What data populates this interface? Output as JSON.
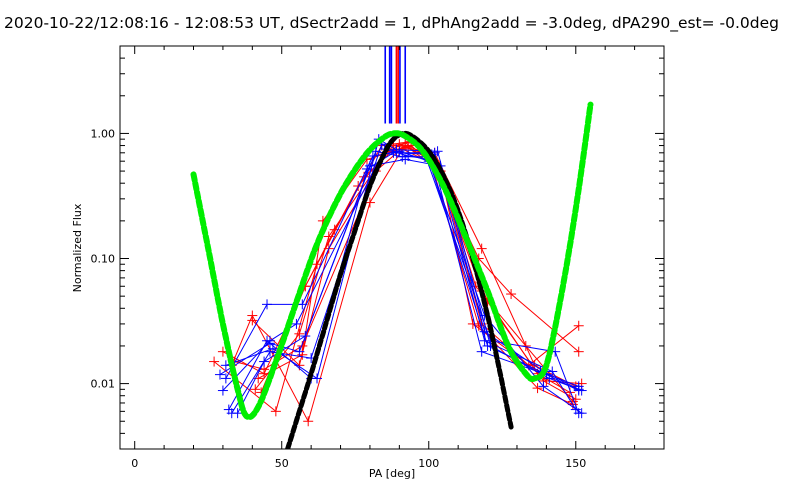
{
  "chart_data": {
    "type": "line",
    "title": "2020-10-22/12:08:16 - 12:08:53 UT, dSectr2add = 1, dPhAng2add = -3.0deg, dPA290_est= -0.0deg",
    "xlabel": "PA [deg]",
    "ylabel": "Normalized Flux",
    "xlim": [
      -5,
      180
    ],
    "ylim": [
      0.003,
      5
    ],
    "yscale": "log",
    "x_ticks": [
      0,
      50,
      100,
      150
    ],
    "x_tick_labels": [
      "0",
      "50",
      "100",
      "150"
    ],
    "y_ticks": [
      0.01,
      0.1,
      1.0
    ],
    "y_tick_labels": [
      "0.01",
      "0.10",
      "1.00"
    ],
    "grid": false,
    "vertical_markers": [
      {
        "x": 85.2,
        "color": "#0000ff"
      },
      {
        "x": 86.7,
        "color": "#0000ff"
      },
      {
        "x": 87.3,
        "color": "#0000ff"
      },
      {
        "x": 89.0,
        "color": "#ff0000"
      },
      {
        "x": 89.6,
        "color": "#ff0000"
      },
      {
        "x": 90.2,
        "color": "#0000ff"
      },
      {
        "x": 92.0,
        "color": "#0000ff"
      }
    ],
    "vertical_marker_range": [
      1.2,
      5
    ],
    "green_fit": {
      "name": "green fit",
      "color": "#00ee00",
      "x": [
        20,
        25,
        30,
        35,
        38,
        42,
        48,
        55,
        62,
        70,
        78,
        84,
        88,
        92,
        98,
        105,
        112,
        120,
        127,
        133,
        136,
        140,
        145,
        150,
        155
      ],
      "y": [
        0.47,
        0.12,
        0.03,
        0.009,
        0.0055,
        0.0065,
        0.015,
        0.045,
        0.13,
        0.33,
        0.65,
        0.9,
        1.0,
        0.95,
        0.72,
        0.38,
        0.16,
        0.055,
        0.02,
        0.012,
        0.011,
        0.014,
        0.05,
        0.25,
        1.7
      ]
    },
    "black_fit": {
      "name": "black fit",
      "color": "#000000",
      "peak_x": 91.5,
      "peak_y": 1.0,
      "x": [
        52,
        56,
        60,
        65,
        70,
        75,
        80,
        85,
        88,
        91.5,
        95,
        100,
        105,
        110,
        115,
        120,
        124,
        128
      ],
      "y": [
        0.003,
        0.006,
        0.012,
        0.03,
        0.075,
        0.17,
        0.38,
        0.7,
        0.9,
        1.0,
        0.93,
        0.72,
        0.46,
        0.24,
        0.1,
        0.035,
        0.013,
        0.0045
      ]
    },
    "series": [
      {
        "name": "red trace 1",
        "color": "#ff0000",
        "x": [
          27,
          48,
          62,
          76,
          88,
          102,
          118,
          136,
          150
        ],
        "y": [
          0.015,
          0.006,
          0.09,
          0.38,
          0.8,
          0.7,
          0.12,
          0.014,
          0.0095
        ]
      },
      {
        "name": "red trace 2",
        "color": "#ff0000",
        "x": [
          30,
          44,
          58,
          78,
          90,
          101,
          117,
          128,
          151
        ],
        "y": [
          0.018,
          0.012,
          0.06,
          0.45,
          0.82,
          0.62,
          0.1,
          0.052,
          0.018
        ]
      },
      {
        "name": "red trace 3",
        "color": "#ff0000",
        "x": [
          33,
          40,
          59,
          80,
          91,
          103,
          116,
          133,
          149
        ],
        "y": [
          0.014,
          0.035,
          0.005,
          0.28,
          0.75,
          0.55,
          0.06,
          0.02,
          0.0072
        ]
      },
      {
        "name": "red trace 4",
        "color": "#ff0000",
        "x": [
          40,
          56,
          66,
          82,
          92,
          104,
          115,
          134,
          151
        ],
        "y": [
          0.032,
          0.014,
          0.12,
          0.5,
          0.8,
          0.5,
          0.03,
          0.014,
          0.029
        ]
      },
      {
        "name": "red trace 5",
        "color": "#ff0000",
        "x": [
          42,
          57,
          64,
          79,
          93,
          102,
          118,
          137,
          148
        ],
        "y": [
          0.011,
          0.017,
          0.2,
          0.62,
          0.78,
          0.58,
          0.055,
          0.012,
          0.0085
        ]
      },
      {
        "name": "red trace 6",
        "color": "#ff0000",
        "x": [
          43,
          58,
          68,
          84,
          94,
          100,
          117,
          137,
          149
        ],
        "y": [
          0.0085,
          0.06,
          0.17,
          0.8,
          0.86,
          0.68,
          0.029,
          0.0092,
          0.0068
        ]
      },
      {
        "name": "red trace 7",
        "color": "#ff0000",
        "x": [
          41,
          56,
          66,
          86,
          92,
          102,
          120,
          139,
          150
        ],
        "y": [
          0.009,
          0.025,
          0.15,
          0.72,
          0.84,
          0.6,
          0.045,
          0.0105,
          0.0075
        ]
      },
      {
        "name": "red trace 8",
        "color": "#ff0000",
        "x": [
          34,
          44,
          57,
          85,
          94,
          104,
          118,
          140,
          152
        ],
        "y": [
          0.015,
          0.013,
          0.02,
          0.7,
          0.8,
          0.5,
          0.03,
          0.0105,
          0.01
        ]
      },
      {
        "name": "blue trace 1",
        "color": "#0000ff",
        "x": [
          31,
          45,
          57,
          81,
          90,
          100,
          119,
          139,
          152
        ],
        "y": [
          0.011,
          0.043,
          0.043,
          0.66,
          0.72,
          0.6,
          0.035,
          0.0095,
          0.0058
        ]
      },
      {
        "name": "blue trace 2",
        "color": "#0000ff",
        "x": [
          32,
          45,
          60,
          79,
          88,
          101,
          118,
          140,
          151
        ],
        "y": [
          0.0062,
          0.022,
          0.011,
          0.52,
          0.7,
          0.68,
          0.018,
          0.0118,
          0.0088
        ]
      },
      {
        "name": "blue trace 3",
        "color": "#0000ff",
        "x": [
          31,
          47,
          62,
          83,
          89,
          103,
          121,
          141,
          152
        ],
        "y": [
          0.014,
          0.019,
          0.011,
          0.9,
          0.74,
          0.72,
          0.02,
          0.011,
          0.0088
        ]
      },
      {
        "name": "blue trace 4",
        "color": "#0000ff",
        "x": [
          29,
          46,
          56,
          82,
          91,
          99,
          121,
          143,
          151
        ],
        "y": [
          0.0118,
          0.021,
          0.018,
          0.72,
          0.65,
          0.65,
          0.022,
          0.018,
          0.0058
        ]
      },
      {
        "name": "blue trace 5",
        "color": "#0000ff",
        "x": [
          33,
          46,
          60,
          84,
          89,
          102,
          119,
          142,
          150
        ],
        "y": [
          0.0058,
          0.018,
          0.016,
          0.82,
          0.7,
          0.7,
          0.022,
          0.0125,
          0.0062
        ]
      },
      {
        "name": "blue trace 6",
        "color": "#0000ff",
        "x": [
          35,
          44,
          58,
          80,
          92,
          104,
          119,
          139,
          151
        ],
        "y": [
          0.0058,
          0.015,
          0.024,
          0.55,
          0.62,
          0.55,
          0.026,
          0.0125,
          0.009
        ]
      },
      {
        "name": "blue trace 7",
        "color": "#0000ff",
        "x": [
          30,
          46,
          55,
          85,
          93,
          100,
          120,
          138,
          151
        ],
        "y": [
          0.0088,
          0.022,
          0.03,
          0.75,
          0.66,
          0.62,
          0.02,
          0.0125,
          0.0095
        ]
      }
    ]
  }
}
